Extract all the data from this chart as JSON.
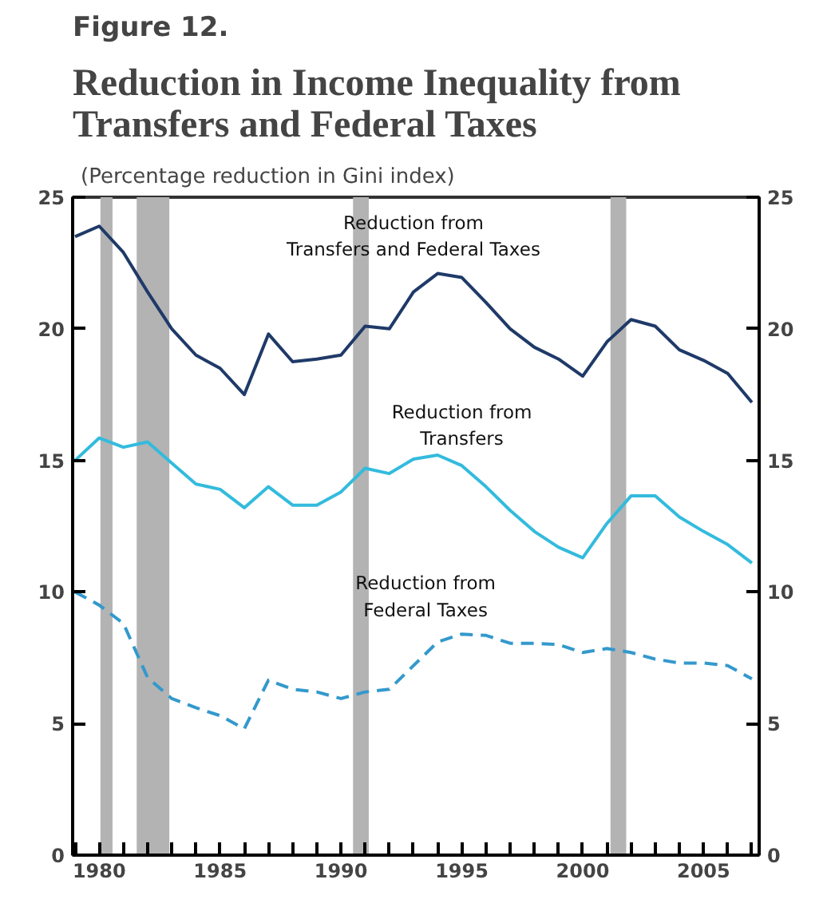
{
  "chart_data": {
    "type": "line",
    "title": "Reduction in Income Inequality from Transfers and Federal Taxes",
    "subtitle": "(Percentage reduction in Gini index)",
    "annotations": [
      "Figure 12."
    ],
    "x": [
      1979,
      1980,
      1981,
      1982,
      1983,
      1984,
      1985,
      1986,
      1987,
      1988,
      1989,
      1990,
      1991,
      1992,
      1993,
      1994,
      1995,
      1996,
      1997,
      1998,
      1999,
      2000,
      2001,
      2002,
      2003,
      2004,
      2005,
      2006,
      2007
    ],
    "series": [
      {
        "name": "Reduction from Transfers and Federal Taxes",
        "color": "#1f3a68",
        "line_style": "solid",
        "values": [
          23.5,
          23.9,
          22.9,
          21.4,
          20.0,
          19.0,
          18.5,
          17.5,
          19.8,
          18.75,
          18.85,
          19.0,
          20.1,
          20.0,
          21.4,
          22.1,
          21.95,
          21.0,
          20.0,
          19.3,
          18.85,
          18.2,
          19.5,
          20.35,
          20.1,
          19.2,
          18.8,
          18.3,
          17.2
        ]
      },
      {
        "name": "Reduction from Transfers",
        "color": "#33bbdd",
        "line_style": "solid",
        "values": [
          15.0,
          15.85,
          15.5,
          15.7,
          14.9,
          14.1,
          13.9,
          13.2,
          14.0,
          13.3,
          13.3,
          13.8,
          14.7,
          14.5,
          15.05,
          15.2,
          14.8,
          14.0,
          13.1,
          12.3,
          11.7,
          11.3,
          12.6,
          13.65,
          13.65,
          12.85,
          12.3,
          11.8,
          11.1
        ]
      },
      {
        "name": "Reduction from Federal Taxes",
        "color": "#3399cc",
        "line_style": "dashed",
        "values": [
          10.0,
          9.5,
          8.8,
          6.75,
          5.95,
          5.6,
          5.3,
          4.8,
          6.65,
          6.3,
          6.2,
          5.95,
          6.2,
          6.3,
          7.2,
          8.1,
          8.4,
          8.35,
          8.05,
          8.05,
          8.0,
          7.7,
          7.85,
          7.7,
          7.45,
          7.3,
          7.3,
          7.2,
          6.7
        ]
      }
    ],
    "bands": [
      {
        "axis": "x",
        "from": 1980.05,
        "to": 1980.55,
        "color": "#b3b3b3"
      },
      {
        "axis": "x",
        "from": 1981.55,
        "to": 1982.9,
        "color": "#b3b3b3"
      },
      {
        "axis": "x",
        "from": 1990.5,
        "to": 1991.15,
        "color": "#b3b3b3"
      },
      {
        "axis": "x",
        "from": 2001.15,
        "to": 2001.8,
        "color": "#b3b3b3"
      }
    ],
    "xlim": [
      1978.9,
      2007.3
    ],
    "xticks": [
      {
        "value": 1979,
        "label": null
      },
      1980,
      {
        "value": 1981,
        "label": null
      },
      {
        "value": 1982,
        "label": null
      },
      {
        "value": 1983,
        "label": null
      },
      {
        "value": 1984,
        "label": null
      },
      1985,
      {
        "value": 1986,
        "label": null
      },
      {
        "value": 1987,
        "label": null
      },
      {
        "value": 1988,
        "label": null
      },
      {
        "value": 1989,
        "label": null
      },
      1990,
      {
        "value": 1991,
        "label": null
      },
      {
        "value": 1992,
        "label": null
      },
      {
        "value": 1993,
        "label": null
      },
      {
        "value": 1994,
        "label": null
      },
      1995,
      {
        "value": 1996,
        "label": null
      },
      {
        "value": 1997,
        "label": null
      },
      {
        "value": 1998,
        "label": null
      },
      {
        "value": 1999,
        "label": null
      },
      2000,
      {
        "value": 2001,
        "label": null
      },
      {
        "value": 2002,
        "label": null
      },
      {
        "value": 2003,
        "label": null
      },
      {
        "value": 2004,
        "label": null
      },
      2005,
      {
        "value": 2006,
        "label": null
      },
      {
        "value": 2007,
        "label": null
      }
    ],
    "ylim": [
      0,
      25
    ],
    "yticks": [
      0,
      5,
      10,
      15,
      20,
      25
    ],
    "y2lim": [
      0,
      25
    ],
    "y2ticks": [
      0,
      5,
      10,
      15,
      20,
      25
    ],
    "grid": false
  }
}
